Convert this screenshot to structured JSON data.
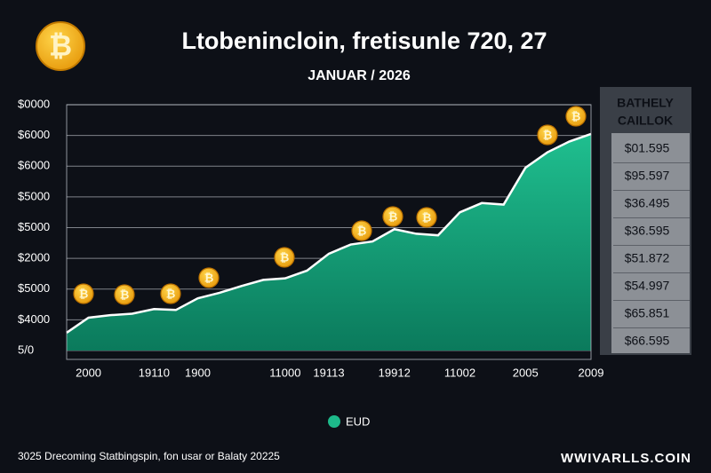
{
  "chart_data": {
    "type": "area",
    "title": "Ltobenincloin, fretisunle 720, 27",
    "subtitle": "JANUAR / 2026",
    "categories": [
      null,
      "2000",
      null,
      null,
      "19110",
      null,
      "1900",
      null,
      null,
      null,
      "11000",
      null,
      "19113",
      null,
      null,
      "19912",
      null,
      null,
      "11002",
      null,
      null,
      "2005",
      null,
      null,
      "2009"
    ],
    "series": [
      {
        "name": "EUD",
        "color": "#1db98a",
        "values": [
          0.58,
          1.07,
          1.15,
          1.2,
          1.35,
          1.32,
          1.7,
          1.88,
          2.1,
          2.3,
          2.35,
          2.6,
          3.15,
          3.45,
          3.55,
          3.95,
          3.8,
          3.75,
          4.5,
          4.8,
          4.75,
          5.95,
          6.45,
          6.8,
          7.05
        ]
      }
    ],
    "ylim": [
      0,
      8
    ],
    "yticks": [
      {
        "value": 0,
        "label": "5/0"
      },
      {
        "value": 1,
        "label": "$4000"
      },
      {
        "value": 2,
        "label": "$5000"
      },
      {
        "value": 3,
        "label": "$2000"
      },
      {
        "value": 4,
        "label": "$5000"
      },
      {
        "value": 5,
        "label": "$5000"
      },
      {
        "value": 6,
        "label": "$6000"
      },
      {
        "value": 7,
        "label": "$6000"
      },
      {
        "value": 8,
        "label": "$0000"
      }
    ],
    "grid": true
  },
  "side_panel": {
    "title_lines": [
      "BATHELY",
      "CAILLOK"
    ],
    "rows": [
      "$01.595",
      "$95.597",
      "$36.495",
      "$36.595",
      "$51.872",
      "$54.997",
      "$65.851",
      "$66.595"
    ]
  },
  "footer": {
    "left": "3025 Drecoming Statbingspin, fon usar or Balaty 20225",
    "right": "WWIVARLLS.COIN"
  }
}
